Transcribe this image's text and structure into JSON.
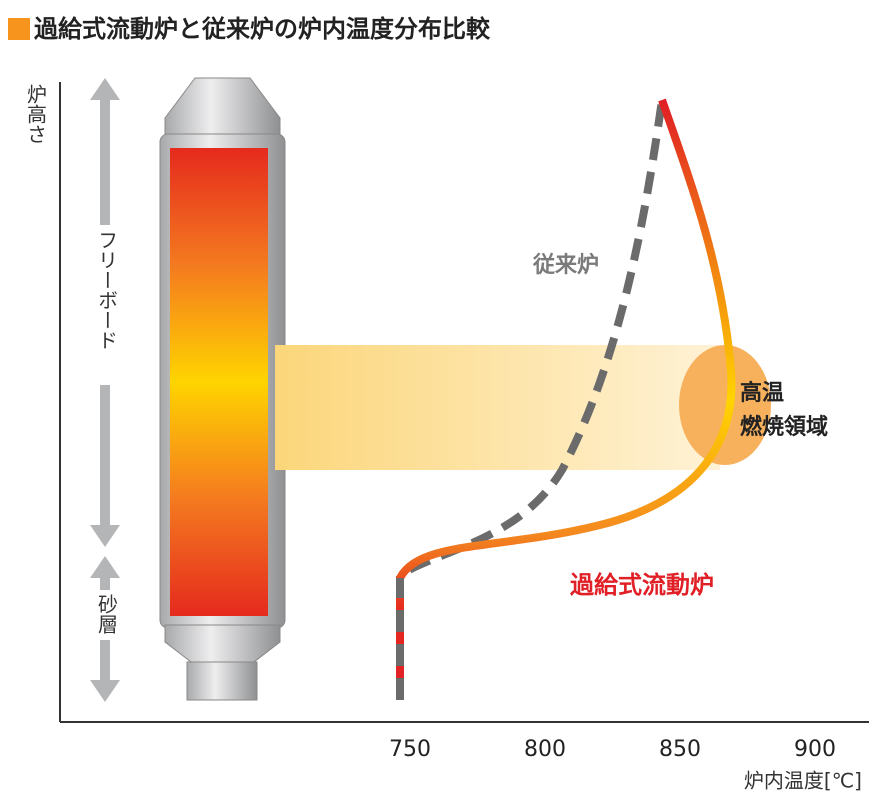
{
  "title": "過給式流動炉と従来炉の炉内温度分布比較",
  "y_axis_label": "炉高さ",
  "x_axis_label": "炉内温度[℃]",
  "x_ticks": [
    "750",
    "800",
    "850",
    "900"
  ],
  "zones": {
    "freeboard": "フリーボード",
    "sand_bed": "砂層"
  },
  "curves": {
    "conventional": "従来炉",
    "pressurized": "過給式流動炉"
  },
  "hot_zone": [
    "高温",
    "燃焼領域"
  ]
}
